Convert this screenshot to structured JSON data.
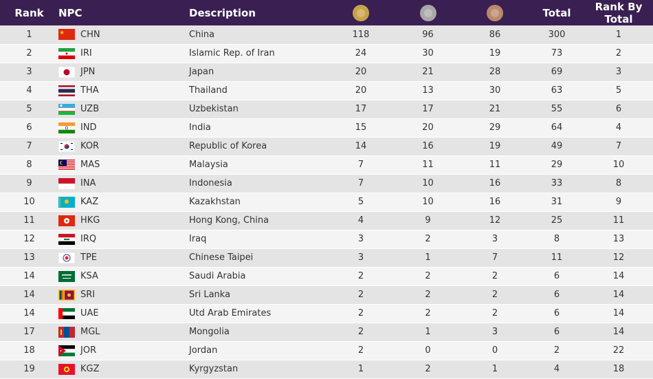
{
  "header": {
    "rank": "Rank",
    "npc": "NPC",
    "description": "Description",
    "total": "Total",
    "rank_by_total": "Rank By Total",
    "gold_icon": "gold-medal-icon",
    "silver_icon": "silver-medal-icon",
    "bronze_icon": "bronze-medal-icon"
  },
  "colors": {
    "header_bg": "#3a1f52",
    "gold": "#c8a24a",
    "silver": "#a8a8a8",
    "bronze": "#b88a6a"
  },
  "rows": [
    {
      "rank": "1",
      "code": "CHN",
      "desc": "China",
      "gold": "118",
      "silver": "96",
      "bronze": "86",
      "total": "300",
      "rbt": "1",
      "flag": "chn"
    },
    {
      "rank": "2",
      "code": "IRI",
      "desc": "Islamic Rep. of Iran",
      "gold": "24",
      "silver": "30",
      "bronze": "19",
      "total": "73",
      "rbt": "2",
      "flag": "iri"
    },
    {
      "rank": "3",
      "code": "JPN",
      "desc": "Japan",
      "gold": "20",
      "silver": "21",
      "bronze": "28",
      "total": "69",
      "rbt": "3",
      "flag": "jpn"
    },
    {
      "rank": "4",
      "code": "THA",
      "desc": "Thailand",
      "gold": "20",
      "silver": "13",
      "bronze": "30",
      "total": "63",
      "rbt": "5",
      "flag": "tha"
    },
    {
      "rank": "5",
      "code": "UZB",
      "desc": "Uzbekistan",
      "gold": "17",
      "silver": "17",
      "bronze": "21",
      "total": "55",
      "rbt": "6",
      "flag": "uzb"
    },
    {
      "rank": "6",
      "code": "IND",
      "desc": "India",
      "gold": "15",
      "silver": "20",
      "bronze": "29",
      "total": "64",
      "rbt": "4",
      "flag": "ind"
    },
    {
      "rank": "7",
      "code": "KOR",
      "desc": "Republic of Korea",
      "gold": "14",
      "silver": "16",
      "bronze": "19",
      "total": "49",
      "rbt": "7",
      "flag": "kor"
    },
    {
      "rank": "8",
      "code": "MAS",
      "desc": "Malaysia",
      "gold": "7",
      "silver": "11",
      "bronze": "11",
      "total": "29",
      "rbt": "10",
      "flag": "mas"
    },
    {
      "rank": "9",
      "code": "INA",
      "desc": "Indonesia",
      "gold": "7",
      "silver": "10",
      "bronze": "16",
      "total": "33",
      "rbt": "8",
      "flag": "ina"
    },
    {
      "rank": "10",
      "code": "KAZ",
      "desc": "Kazakhstan",
      "gold": "5",
      "silver": "10",
      "bronze": "16",
      "total": "31",
      "rbt": "9",
      "flag": "kaz"
    },
    {
      "rank": "11",
      "code": "HKG",
      "desc": "Hong Kong, China",
      "gold": "4",
      "silver": "9",
      "bronze": "12",
      "total": "25",
      "rbt": "11",
      "flag": "hkg"
    },
    {
      "rank": "12",
      "code": "IRQ",
      "desc": "Iraq",
      "gold": "3",
      "silver": "2",
      "bronze": "3",
      "total": "8",
      "rbt": "13",
      "flag": "irq"
    },
    {
      "rank": "13",
      "code": "TPE",
      "desc": "Chinese Taipei",
      "gold": "3",
      "silver": "1",
      "bronze": "7",
      "total": "11",
      "rbt": "12",
      "flag": "tpe"
    },
    {
      "rank": "14",
      "code": "KSA",
      "desc": "Saudi Arabia",
      "gold": "2",
      "silver": "2",
      "bronze": "2",
      "total": "6",
      "rbt": "14",
      "flag": "ksa"
    },
    {
      "rank": "14",
      "code": "SRI",
      "desc": "Sri Lanka",
      "gold": "2",
      "silver": "2",
      "bronze": "2",
      "total": "6",
      "rbt": "14",
      "flag": "sri"
    },
    {
      "rank": "14",
      "code": "UAE",
      "desc": "Utd Arab Emirates",
      "gold": "2",
      "silver": "2",
      "bronze": "2",
      "total": "6",
      "rbt": "14",
      "flag": "uae"
    },
    {
      "rank": "17",
      "code": "MGL",
      "desc": "Mongolia",
      "gold": "2",
      "silver": "1",
      "bronze": "3",
      "total": "6",
      "rbt": "14",
      "flag": "mgl"
    },
    {
      "rank": "18",
      "code": "JOR",
      "desc": "Jordan",
      "gold": "2",
      "silver": "0",
      "bronze": "0",
      "total": "2",
      "rbt": "22",
      "flag": "jor"
    },
    {
      "rank": "19",
      "code": "KGZ",
      "desc": "Kyrgyzstan",
      "gold": "1",
      "silver": "2",
      "bronze": "1",
      "total": "4",
      "rbt": "18",
      "flag": "kgz"
    }
  ]
}
